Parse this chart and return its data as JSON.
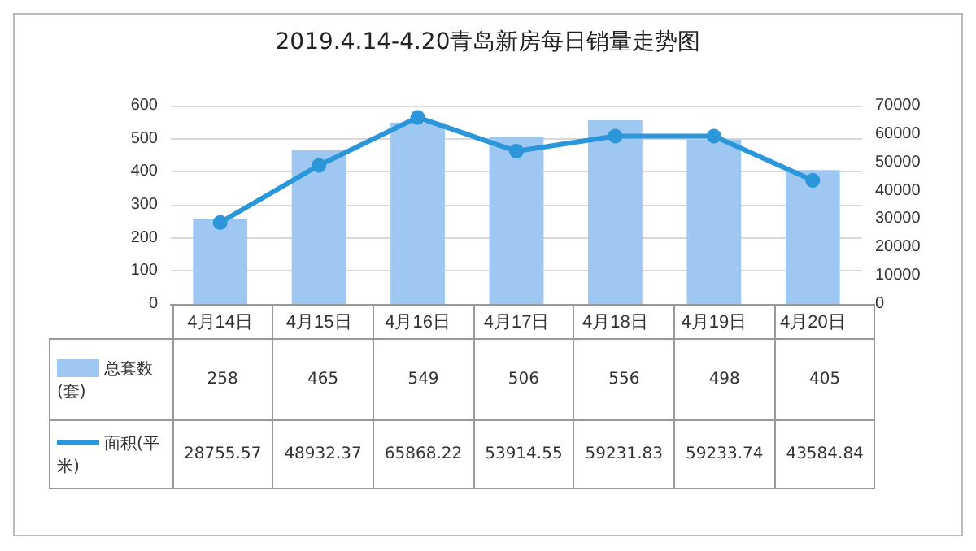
{
  "chart_data": {
    "type": "bar",
    "title": "2019.4.14-4.20青岛新房每日销量走势图",
    "categories": [
      "4月14日",
      "4月15日",
      "4月16日",
      "4月17日",
      "4月18日",
      "4月19日",
      "4月20日"
    ],
    "series": [
      {
        "name": "总套数(套)",
        "color": "#9ec8f2",
        "values": [
          258,
          465,
          549,
          506,
          556,
          498,
          405
        ]
      },
      {
        "name": "面积(平米)",
        "type": "line",
        "axis": "y2",
        "color": "#2b96d9",
        "values": [
          28755.57,
          48932.37,
          65868.22,
          53914.55,
          59231.83,
          59233.74,
          43584.84
        ]
      }
    ],
    "ylim": [
      0,
      600
    ],
    "yticks": [
      0,
      100,
      200,
      300,
      400,
      500,
      600
    ],
    "y2lim": [
      0,
      70000
    ],
    "y2ticks": [
      0,
      10000,
      20000,
      30000,
      40000,
      50000,
      60000,
      70000
    ],
    "grid": "y",
    "legend": "bottom left",
    "marker": "circle",
    "line_style": "solid",
    "data_labels": true
  }
}
